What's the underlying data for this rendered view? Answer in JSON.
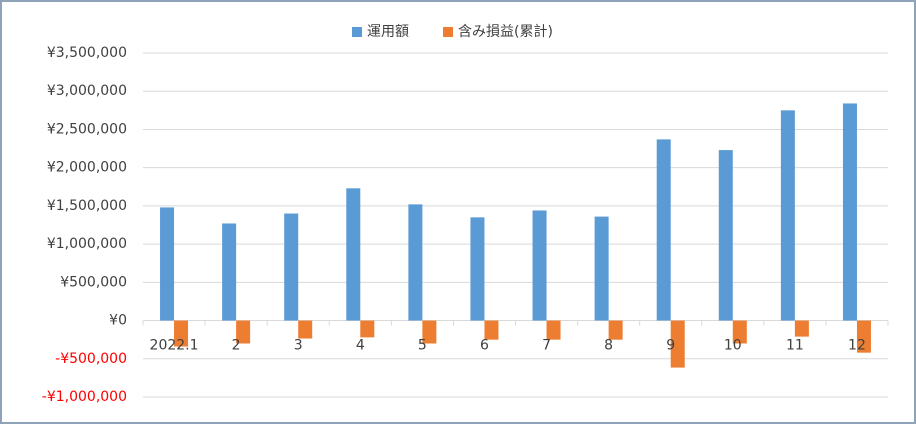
{
  "chart_data": {
    "type": "bar",
    "categories": [
      "2022.1",
      "2",
      "3",
      "4",
      "5",
      "6",
      "7",
      "8",
      "9",
      "10",
      "11",
      "12"
    ],
    "series": [
      {
        "name": "運用額",
        "color": "#5b9bd5",
        "values": [
          1480000,
          1270000,
          1400000,
          1730000,
          1520000,
          1350000,
          1440000,
          1360000,
          2370000,
          2230000,
          2750000,
          2840000
        ]
      },
      {
        "name": "含み損益(累計)",
        "color": "#ed7d31",
        "values": [
          -340000,
          -300000,
          -235000,
          -220000,
          -300000,
          -250000,
          -250000,
          -250000,
          -615000,
          -300000,
          -210000,
          -420000
        ]
      }
    ],
    "ylim": [
      -1000000,
      3500000
    ],
    "yticks": [
      {
        "value": -1000000,
        "label": "-¥1,000,000"
      },
      {
        "value": -500000,
        "label": "-¥500,000"
      },
      {
        "value": 0,
        "label": "¥0"
      },
      {
        "value": 500000,
        "label": "¥500,000"
      },
      {
        "value": 1000000,
        "label": "¥1,000,000"
      },
      {
        "value": 1500000,
        "label": "¥1,500,000"
      },
      {
        "value": 2000000,
        "label": "¥2,000,000"
      },
      {
        "value": 2500000,
        "label": "¥2,500,000"
      },
      {
        "value": 3000000,
        "label": "¥3,000,000"
      },
      {
        "value": 3500000,
        "label": "¥3,500,000"
      }
    ],
    "negative_tick_color": "#ff0000",
    "grid": true,
    "legend": "top"
  }
}
